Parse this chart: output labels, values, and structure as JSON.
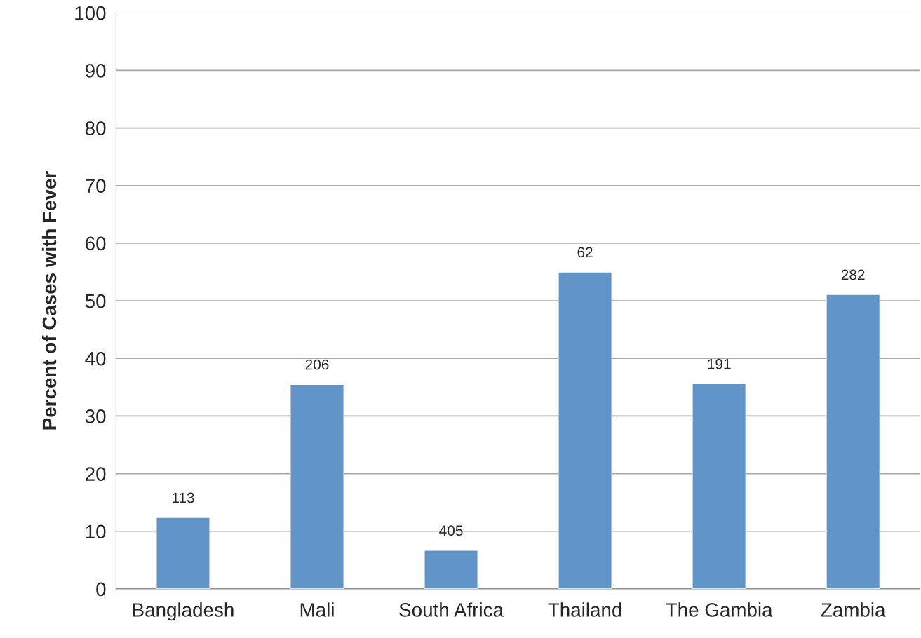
{
  "chart_data": {
    "type": "bar",
    "ylabel": "Percent of Cases with Fever",
    "categories": [
      "Bangladesh",
      "Mali",
      "South Africa",
      "Thailand",
      "The Gambia",
      "Zambia"
    ],
    "values": [
      12.4,
      35.5,
      6.7,
      55.0,
      35.6,
      51.1
    ],
    "annotations": [
      {
        "text": "113",
        "x": "Bangladesh",
        "y": 12.4
      },
      {
        "text": "206",
        "x": "Mali",
        "y": 35.5
      },
      {
        "text": "405",
        "x": "South Africa",
        "y": 6.7
      },
      {
        "text": "62",
        "x": "Thailand",
        "y": 55.0
      },
      {
        "text": "191",
        "x": "The Gambia",
        "y": 35.6
      },
      {
        "text": "282",
        "x": "Zambia",
        "y": 51.1
      }
    ],
    "color": "#6195c9",
    "ylim": [
      0,
      100
    ],
    "yticks": [
      0,
      10,
      20,
      30,
      40,
      50,
      60,
      70,
      80,
      90,
      100
    ],
    "grid": "y"
  }
}
